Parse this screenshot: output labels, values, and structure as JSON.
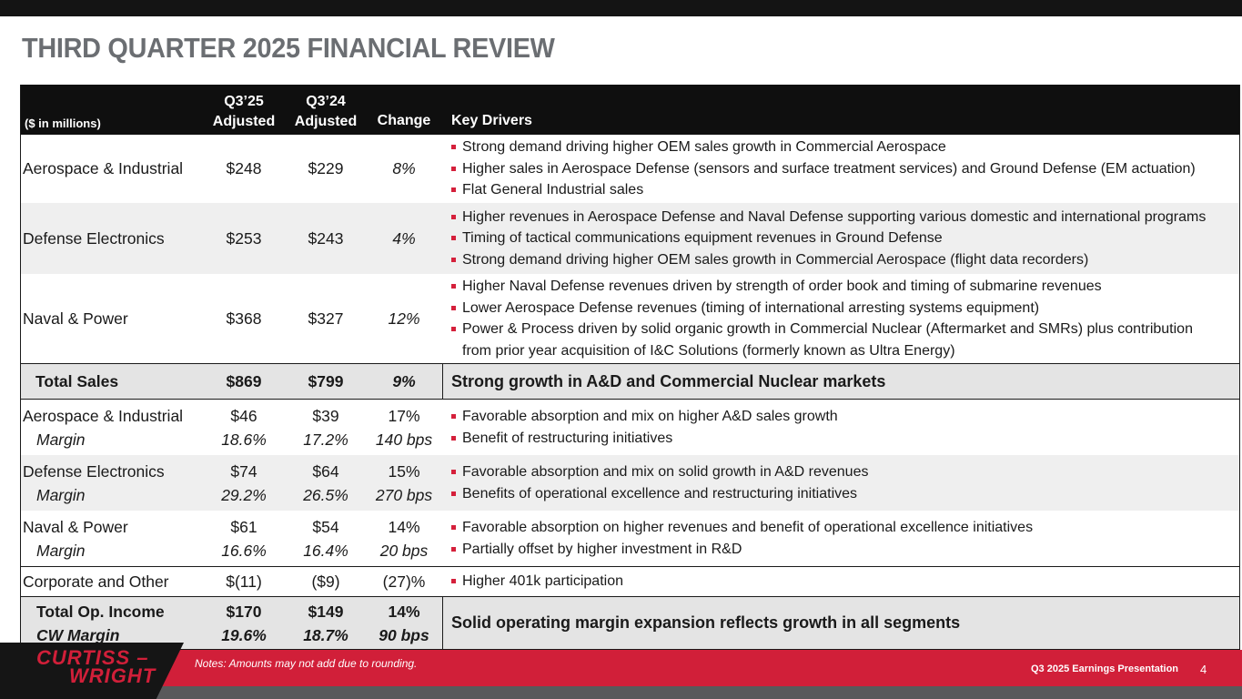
{
  "title": "THIRD QUARTER 2025 FINANCIAL REVIEW",
  "colors": {
    "accent": "#d11f39",
    "header_bg": "#0f0f0f",
    "title": "#6b6e72"
  },
  "header": {
    "units": "($ in millions)",
    "q325_line1": "Q3’25",
    "q325_line2": "Adjusted",
    "q324_line1": "Q3’24",
    "q324_line2": "Adjusted",
    "change": "Change",
    "drivers": "Key Drivers"
  },
  "sales": [
    {
      "segment": "Aerospace & Industrial",
      "q325": "$248",
      "q324": "$229",
      "change": "8%",
      "drivers": [
        "Strong demand driving higher OEM sales growth in Commercial Aerospace",
        "Higher sales in Aerospace Defense (sensors and surface treatment services) and Ground Defense (EM actuation)",
        "Flat General Industrial sales"
      ]
    },
    {
      "segment": "Defense Electronics",
      "q325": "$253",
      "q324": "$243",
      "change": "4%",
      "drivers": [
        "Higher revenues in Aerospace Defense and Naval Defense supporting various domestic and international programs",
        "Timing of tactical communications equipment revenues in Ground Defense",
        "Strong demand driving higher OEM sales growth in Commercial Aerospace (flight data recorders)"
      ]
    },
    {
      "segment": "Naval & Power",
      "q325": "$368",
      "q324": "$327",
      "change": "12%",
      "drivers": [
        "Higher Naval Defense revenues driven by strength of order book and timing of submarine revenues",
        "Lower Aerospace Defense revenues (timing of international arresting systems equipment)",
        "Power & Process driven by solid organic growth in Commercial Nuclear (Aftermarket and SMRs) plus contribution"
      ],
      "continuation": "from prior year acquisition of I&C Solutions (formerly known as Ultra Energy)"
    }
  ],
  "total_sales": {
    "label": "Total Sales",
    "q325": "$869",
    "q324": "$799",
    "change": "9%",
    "driver": "Strong growth in A&D and Commercial Nuclear markets"
  },
  "op_income": [
    {
      "segment": "Aerospace & Industrial",
      "margin_label": "Margin",
      "q325": "$46",
      "q325_margin": "18.6%",
      "q324": "$39",
      "q324_margin": "17.2%",
      "change": "17%",
      "change_margin": "140 bps",
      "drivers": [
        "Favorable absorption and mix on higher A&D sales growth",
        "Benefit of restructuring initiatives"
      ]
    },
    {
      "segment": "Defense Electronics",
      "margin_label": "Margin",
      "q325": "$74",
      "q325_margin": "29.2%",
      "q324": "$64",
      "q324_margin": "26.5%",
      "change": "15%",
      "change_margin": "270 bps",
      "drivers": [
        "Favorable absorption and mix on solid growth in A&D revenues",
        "Benefits of operational excellence and restructuring initiatives"
      ]
    },
    {
      "segment": "Naval & Power",
      "margin_label": "Margin",
      "q325": "$61",
      "q325_margin": "16.6%",
      "q324": "$54",
      "q324_margin": "16.4%",
      "change": "14%",
      "change_margin": "20 bps",
      "drivers": [
        "Favorable absorption on higher revenues and benefit of operational excellence initiatives",
        "Partially offset by higher investment in R&D"
      ]
    }
  ],
  "corporate": {
    "label": "Corporate and Other",
    "q325": "$(11)",
    "q324": "($9)",
    "change": "(27)%",
    "driver": "Higher 401k participation"
  },
  "total_op": {
    "label": "Total Op. Income",
    "margin_label": "CW Margin",
    "q325": "$170",
    "q325_margin": "19.6%",
    "q324": "$149",
    "q324_margin": "18.7%",
    "change": "14%",
    "change_margin": "90 bps",
    "driver": "Solid operating margin expansion reflects growth in all segments"
  },
  "footer": {
    "logo_line1": "CURTISS –",
    "logo_line2": "WRIGHT",
    "notes": "Notes: Amounts may not add due to rounding.",
    "presentation": "Q3 2025 Earnings Presentation",
    "page": "4"
  }
}
